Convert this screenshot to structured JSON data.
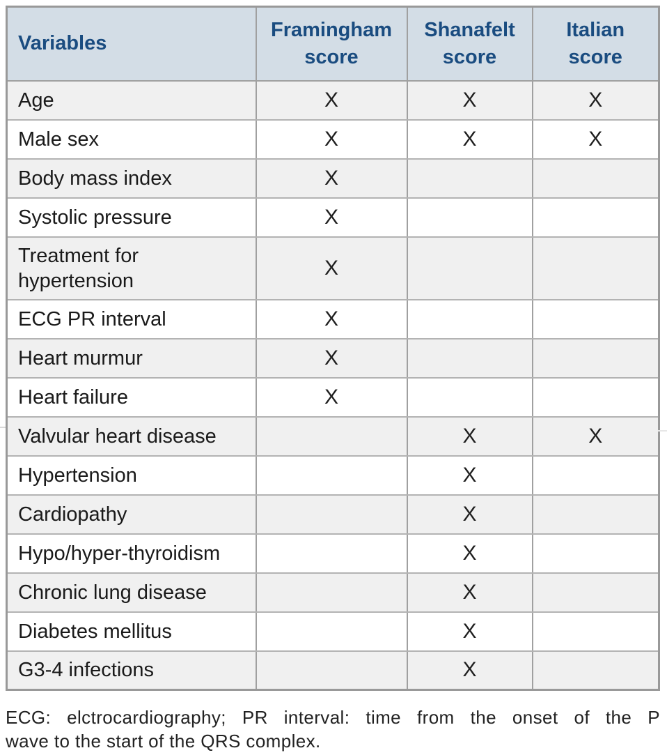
{
  "table": {
    "header": {
      "variables": "Variables",
      "framingham": "Framingham score",
      "shanafelt": "Shanafelt score",
      "italian": "Italian score"
    },
    "mark": "X",
    "rows": [
      {
        "label": "Age",
        "framingham": true,
        "shanafelt": true,
        "italian": true
      },
      {
        "label": "Male sex",
        "framingham": true,
        "shanafelt": true,
        "italian": true
      },
      {
        "label": "Body mass index",
        "framingham": true,
        "shanafelt": false,
        "italian": false
      },
      {
        "label": "Systolic pressure",
        "framingham": true,
        "shanafelt": false,
        "italian": false
      },
      {
        "label": "Treatment for hypertension",
        "framingham": true,
        "shanafelt": false,
        "italian": false
      },
      {
        "label": "ECG PR interval",
        "framingham": true,
        "shanafelt": false,
        "italian": false
      },
      {
        "label": "Heart murmur",
        "framingham": true,
        "shanafelt": false,
        "italian": false
      },
      {
        "label": "Heart failure",
        "framingham": true,
        "shanafelt": false,
        "italian": false
      },
      {
        "label": "Valvular heart disease",
        "framingham": false,
        "shanafelt": true,
        "italian": true
      },
      {
        "label": "Hypertension",
        "framingham": false,
        "shanafelt": true,
        "italian": false
      },
      {
        "label": "Cardiopathy",
        "framingham": false,
        "shanafelt": true,
        "italian": false
      },
      {
        "label": "Hypo/hyper-thyroidism",
        "framingham": false,
        "shanafelt": true,
        "italian": false
      },
      {
        "label": "Chronic lung disease",
        "framingham": false,
        "shanafelt": true,
        "italian": false
      },
      {
        "label": "Diabetes mellitus",
        "framingham": false,
        "shanafelt": true,
        "italian": false
      },
      {
        "label": "G3-4 infections",
        "framingham": false,
        "shanafelt": true,
        "italian": false
      }
    ]
  },
  "footnote": {
    "line1": "ECG: elctrocardiography; PR interval: time from the onset of the P",
    "line2": "wave to the start of the QRS complex."
  },
  "colors": {
    "header_bg": "#d3dde6",
    "header_text": "#1a4c80",
    "row_alt_bg": "#f0f0f0",
    "row_bg": "#ffffff",
    "border": "#999999",
    "grid": "#b3b3b3",
    "grid_vert": "#a0a0a0",
    "body_text": "#1a1a1a",
    "footnote_text": "#222222"
  }
}
